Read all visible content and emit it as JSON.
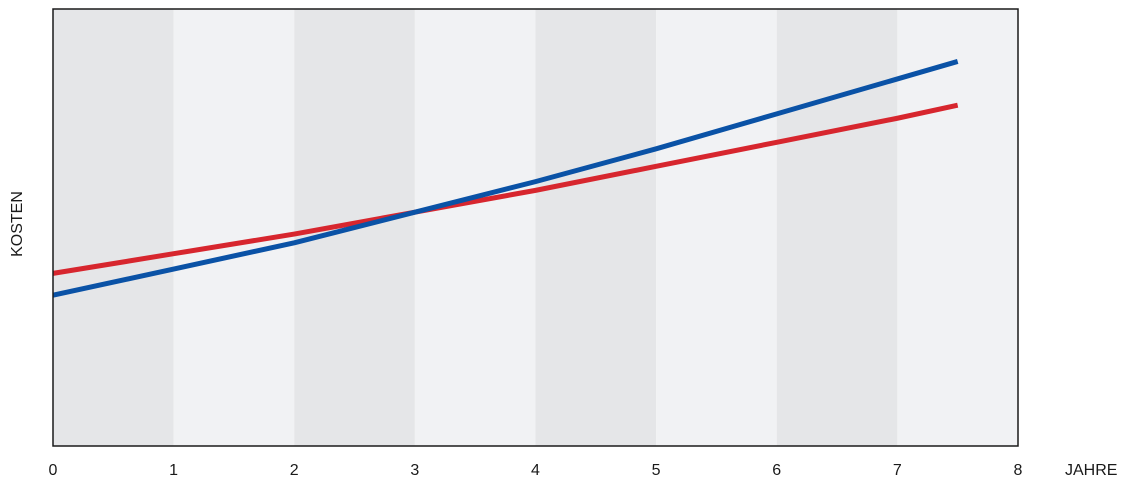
{
  "chart_data": {
    "type": "line",
    "xlabel": "JAHRE",
    "ylabel": "KOSTEN",
    "xlim": [
      0,
      8
    ],
    "ylim": [
      0,
      10
    ],
    "x_ticks": [
      "0",
      "1",
      "2",
      "3",
      "4",
      "5",
      "6",
      "7",
      "8"
    ],
    "grid": false,
    "background_bands": {
      "dark": "#e5e6e8",
      "light": "#f1f2f4"
    },
    "series": [
      {
        "color": "#d7262e",
        "points": [
          [
            0,
            3.95
          ],
          [
            1,
            4.4
          ],
          [
            2,
            4.85
          ],
          [
            3,
            5.35
          ],
          [
            4,
            5.85
          ],
          [
            5,
            6.4
          ],
          [
            6,
            6.95
          ],
          [
            7,
            7.5
          ],
          [
            7.5,
            7.8
          ]
        ]
      },
      {
        "color": "#0a52a6",
        "points": [
          [
            0,
            3.45
          ],
          [
            1,
            4.05
          ],
          [
            2,
            4.65
          ],
          [
            3,
            5.35
          ],
          [
            4,
            6.05
          ],
          [
            5,
            6.8
          ],
          [
            6,
            7.6
          ],
          [
            7,
            8.4
          ],
          [
            7.5,
            8.8
          ]
        ]
      }
    ]
  }
}
